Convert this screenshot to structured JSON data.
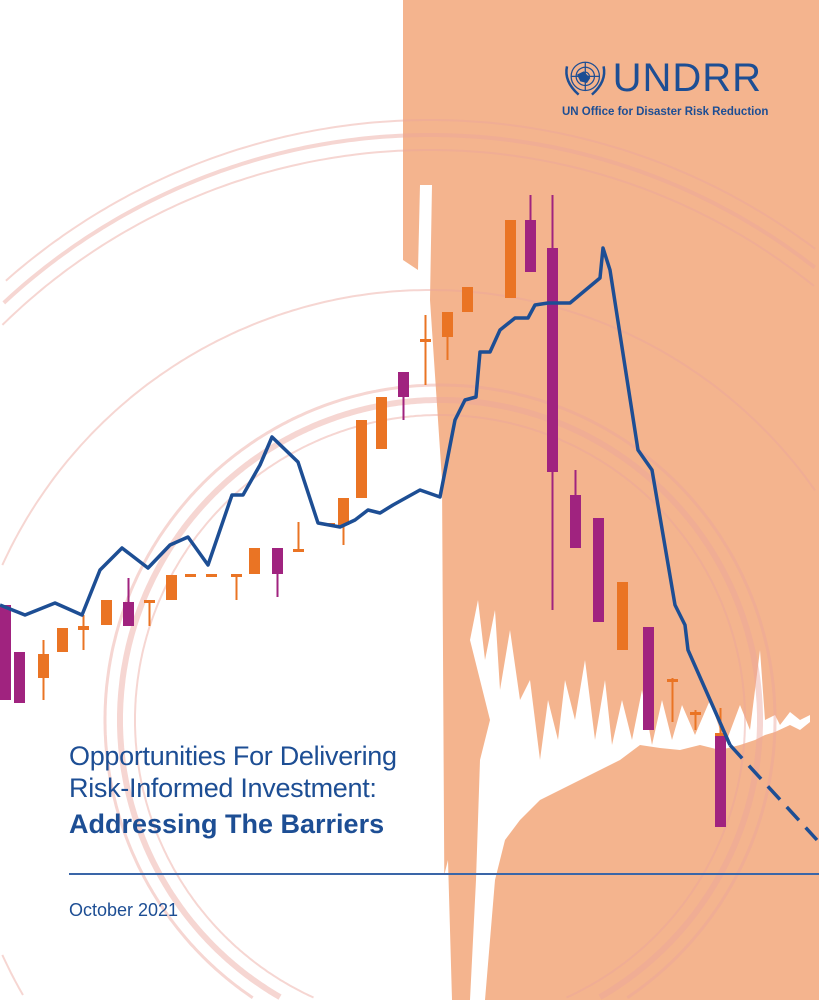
{
  "logo": {
    "name": "UNDRR",
    "subtitle": "UN Office for Disaster Risk Reduction",
    "emblem": "un-emblem-icon"
  },
  "title": {
    "line1": "Opportunities For Delivering",
    "line2": "Risk-Informed Investment:",
    "line3": "Addressing The Barriers"
  },
  "date": "October 2021",
  "colors": {
    "peach": "#f4b48e",
    "navy": "#1d4e94",
    "orange": "#ea7424",
    "magenta": "#a0237f",
    "ring": "#f2c2bc"
  }
}
